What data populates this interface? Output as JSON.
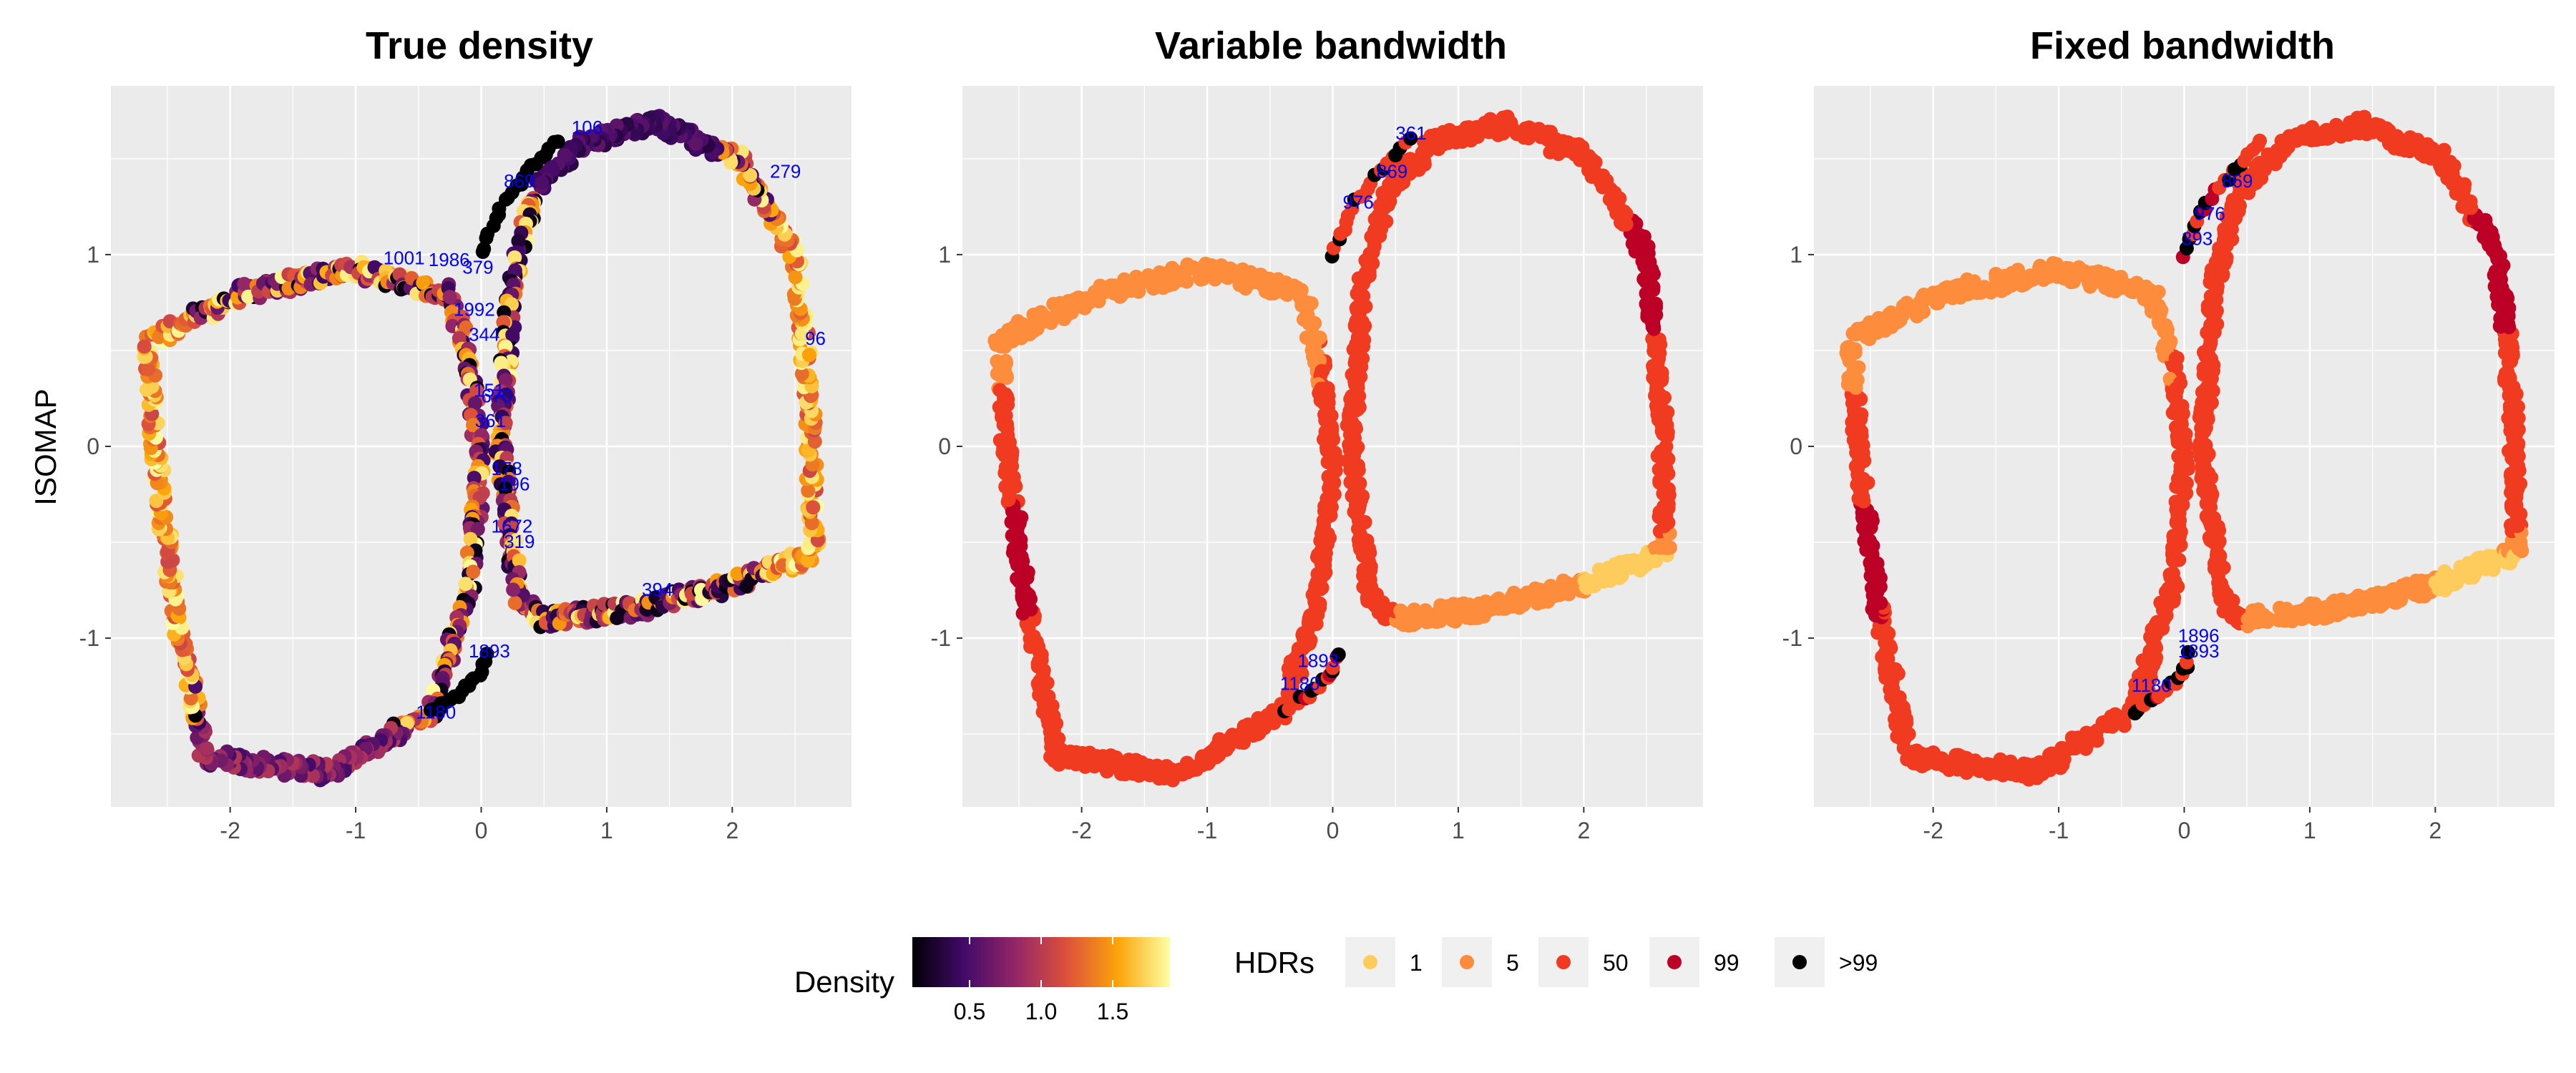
{
  "chart_data": [
    {
      "type": "scatter",
      "title": "True density",
      "ylabel": "ISOMAP",
      "xlabel": "",
      "xlim": [
        -2.95,
        2.95
      ],
      "ylim": [
        -1.88,
        1.88
      ],
      "xticks": [
        -2,
        -1,
        0,
        1,
        2
      ],
      "yticks": [
        -1,
        0,
        1
      ],
      "grid": true,
      "color_by": "Density",
      "series_shapes": [
        {
          "shape": "left-loop",
          "x_range": [
            -2.65,
            0.0
          ],
          "y_range": [
            -1.7,
            0.92
          ]
        },
        {
          "shape": "right-loop",
          "x_range": [
            0.25,
            2.65
          ],
          "y_range": [
            -0.92,
            1.68
          ]
        },
        {
          "shape": "upper-bridge",
          "from": [
            0.0,
            1.0
          ],
          "to": [
            0.65,
            1.62
          ]
        },
        {
          "shape": "lower-bridge",
          "from": [
            -0.4,
            -1.38
          ],
          "to": [
            0.05,
            -1.08
          ]
        }
      ],
      "outlier_labels": [
        {
          "text": "1001",
          "x": -0.78,
          "y": 0.95
        },
        {
          "text": "1986",
          "x": -0.42,
          "y": 0.94
        },
        {
          "text": "379",
          "x": -0.15,
          "y": 0.9
        },
        {
          "text": "1992",
          "x": -0.22,
          "y": 0.68
        },
        {
          "text": "344",
          "x": -0.1,
          "y": 0.55
        },
        {
          "text": "151",
          "x": -0.06,
          "y": 0.26
        },
        {
          "text": "670",
          "x": 0.0,
          "y": 0.23
        },
        {
          "text": "361",
          "x": -0.05,
          "y": 0.1
        },
        {
          "text": "178",
          "x": 0.08,
          "y": -0.15
        },
        {
          "text": "196",
          "x": 0.14,
          "y": -0.23
        },
        {
          "text": "1672",
          "x": 0.08,
          "y": -0.45
        },
        {
          "text": "319",
          "x": 0.18,
          "y": -0.53
        },
        {
          "text": "869",
          "x": 0.18,
          "y": 1.35
        },
        {
          "text": "106",
          "x": 0.72,
          "y": 1.63
        },
        {
          "text": "279",
          "x": 2.3,
          "y": 1.4
        },
        {
          "text": "96",
          "x": 2.58,
          "y": 0.53
        },
        {
          "text": "394",
          "x": 1.28,
          "y": -0.78
        },
        {
          "text": "1893",
          "x": -0.1,
          "y": -1.1
        },
        {
          "text": "1180",
          "x": -0.52,
          "y": -1.42
        }
      ]
    },
    {
      "type": "scatter",
      "title": "Variable bandwidth",
      "xlabel": "",
      "ylabel": "",
      "xlim": [
        -2.95,
        2.95
      ],
      "ylim": [
        -1.88,
        1.88
      ],
      "xticks": [
        -2,
        -1,
        0,
        1,
        2
      ],
      "yticks": [
        -1,
        0,
        1
      ],
      "grid": true,
      "color_by": "HDRs",
      "outlier_labels": [
        {
          "text": "361",
          "x": 0.5,
          "y": 1.6
        },
        {
          "text": "869",
          "x": 0.35,
          "y": 1.4
        },
        {
          "text": "976",
          "x": 0.08,
          "y": 1.24
        },
        {
          "text": "1893",
          "x": -0.28,
          "y": -1.15
        },
        {
          "text": "1180",
          "x": -0.42,
          "y": -1.27
        }
      ]
    },
    {
      "type": "scatter",
      "title": "Fixed bandwidth",
      "xlabel": "",
      "ylabel": "",
      "xlim": [
        -2.95,
        2.95
      ],
      "ylim": [
        -1.88,
        1.88
      ],
      "xticks": [
        -2,
        -1,
        0,
        1,
        2
      ],
      "yticks": [
        -1,
        0,
        1
      ],
      "grid": true,
      "color_by": "HDRs",
      "outlier_labels": [
        {
          "text": "869",
          "x": 0.3,
          "y": 1.35
        },
        {
          "text": "976",
          "x": 0.08,
          "y": 1.18
        },
        {
          "text": "393",
          "x": -0.02,
          "y": 1.05
        },
        {
          "text": "1896",
          "x": -0.05,
          "y": -1.02
        },
        {
          "text": "1893",
          "x": -0.05,
          "y": -1.1
        },
        {
          "text": "1180",
          "x": -0.42,
          "y": -1.28
        }
      ]
    }
  ],
  "legends": {
    "density": {
      "title": "Density",
      "ticks": [
        "0.5",
        "1.0",
        "1.5"
      ],
      "tick_values": [
        0.5,
        1.0,
        1.5
      ],
      "range": [
        0.1,
        1.9
      ],
      "colors": [
        "#000004",
        "#420a68",
        "#932667",
        "#dd513a",
        "#fca50a",
        "#fcffa4"
      ]
    },
    "hdr": {
      "title": "HDRs",
      "items": [
        {
          "label": "1",
          "color": "#fecc5c"
        },
        {
          "label": "5",
          "color": "#fd8d3c"
        },
        {
          "label": "50",
          "color": "#f03b20"
        },
        {
          "label": "99",
          "color": "#bd0026"
        },
        {
          "label": ">99",
          "color": "#000000"
        }
      ]
    }
  },
  "colors": {
    "panel_bg": "#ebebeb",
    "grid": "#ffffff",
    "outlier_label": "#0000ff"
  }
}
